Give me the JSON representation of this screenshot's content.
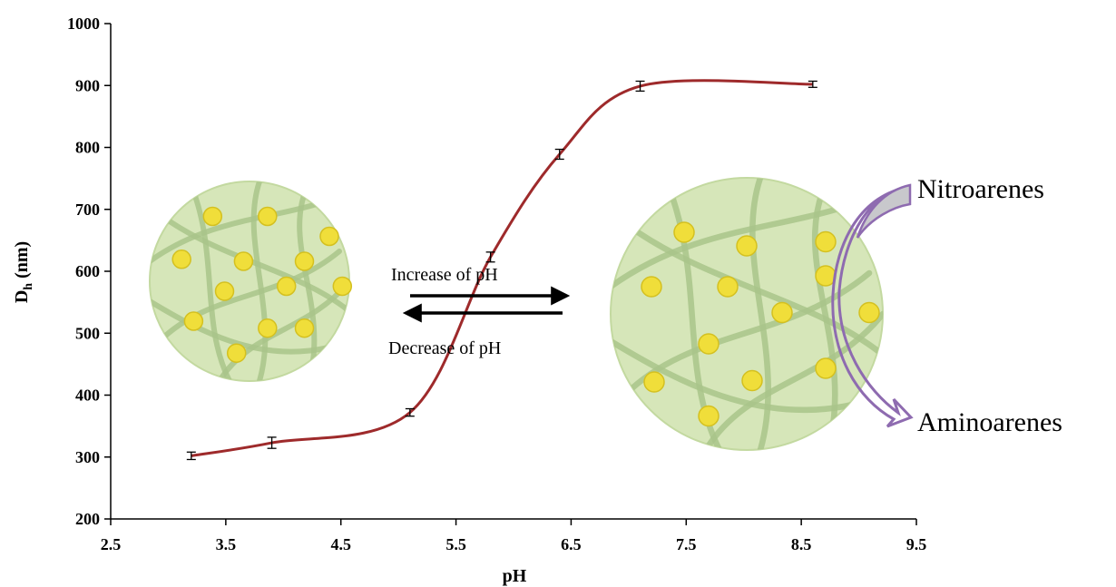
{
  "chart_data": {
    "type": "line",
    "title": "",
    "xlabel": "pH",
    "ylabel_main": "D",
    "ylabel_sub": "h",
    "ylabel_unit": " (nm)",
    "xlim": [
      2.5,
      9.5
    ],
    "ylim": [
      200,
      1000
    ],
    "x_ticks": [
      "2.5",
      "3.5",
      "4.5",
      "5.5",
      "6.5",
      "7.5",
      "8.5",
      "9.5"
    ],
    "y_ticks": [
      "200",
      "300",
      "400",
      "500",
      "600",
      "700",
      "800",
      "900",
      "1000"
    ],
    "grid": false,
    "legend": "none",
    "series": [
      {
        "color": "#9e2a2b",
        "smooth": true,
        "error_bars": true,
        "points": [
          {
            "x": 3.2,
            "y": 302,
            "err": 6
          },
          {
            "x": 3.9,
            "y": 323,
            "err": 9
          },
          {
            "x": 5.1,
            "y": 372,
            "err": 6
          },
          {
            "x": 5.8,
            "y": 623,
            "err": 8
          },
          {
            "x": 6.4,
            "y": 789,
            "err": 8
          },
          {
            "x": 7.1,
            "y": 899,
            "err": 8
          },
          {
            "x": 8.6,
            "y": 902,
            "err": 5
          }
        ]
      }
    ],
    "annotations": {
      "increase_label": "Increase of  pH",
      "decrease_label": "Decrease of pH",
      "nitro_label": "Nitroarenes",
      "amino_label": "Aminoarenes"
    }
  },
  "colors": {
    "particle_fill": "#d6e6b9",
    "particle_stroke": "#c3d9a0",
    "fiber": "#a9c48a",
    "dot": "#f0de3a",
    "dot_stroke": "#d4c020",
    "curved_arrow": "#8e6bb0",
    "curved_arrow_fill": "#c8c8cc"
  }
}
